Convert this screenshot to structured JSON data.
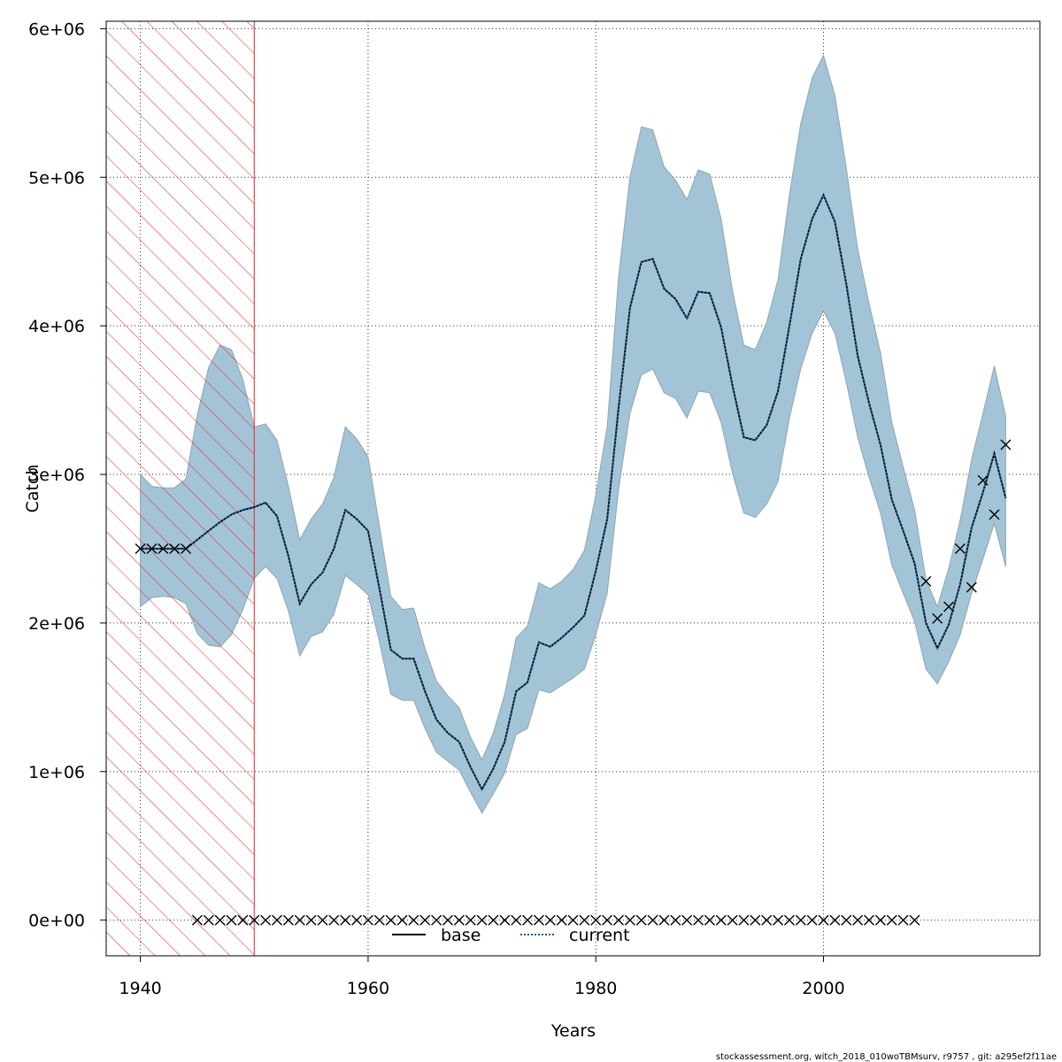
{
  "chart_data": {
    "type": "line",
    "xlabel": "Years",
    "ylabel": "Catch",
    "xlim": [
      1937,
      2019
    ],
    "ylim": [
      -240000,
      6050000
    ],
    "x_ticks": [
      1940,
      1960,
      1980,
      2000
    ],
    "x_tick_labels": [
      "1940",
      "1960",
      "1980",
      "2000"
    ],
    "y_ticks": [
      0,
      1000000,
      2000000,
      3000000,
      4000000,
      5000000,
      6000000
    ],
    "y_tick_labels": [
      "0e+00",
      "1e+06",
      "2e+06",
      "3e+06",
      "4e+06",
      "5e+06",
      "6e+06"
    ],
    "grid": "dotted",
    "shaded_period": {
      "from": 1937,
      "to": 1950,
      "color": "#e8232a"
    },
    "band_color": "#a3c4d6",
    "band_edge_color": "#8fa6b3",
    "series": [
      {
        "name": "current",
        "style": "dotted",
        "color": "#1a5a8a",
        "x": [
          1940,
          1941,
          1942,
          1943,
          1944,
          1945,
          1946,
          1947,
          1948,
          1949,
          1950,
          1951,
          1952,
          1953,
          1954,
          1955,
          1956,
          1957,
          1958,
          1959,
          1960,
          1961,
          1962,
          1963,
          1964,
          1965,
          1966,
          1967,
          1968,
          1969,
          1970,
          1971,
          1972,
          1973,
          1974,
          1975,
          1976,
          1977,
          1978,
          1979,
          1980,
          1981,
          1982,
          1983,
          1984,
          1985,
          1986,
          1987,
          1988,
          1989,
          1990,
          1991,
          1992,
          1993,
          1994,
          1995,
          1996,
          1997,
          1998,
          1999,
          2000,
          2001,
          2002,
          2003,
          2004,
          2005,
          2006,
          2007,
          2008,
          2009,
          2010,
          2011,
          2012,
          2013,
          2014,
          2015,
          2016
        ],
        "values": [
          2500000,
          2500000,
          2500000,
          2500000,
          2500000,
          2560000,
          2620000,
          2680000,
          2730000,
          2760000,
          2780000,
          2810000,
          2720000,
          2450000,
          2130000,
          2260000,
          2340000,
          2500000,
          2760000,
          2700000,
          2620000,
          2230000,
          1820000,
          1760000,
          1760000,
          1540000,
          1350000,
          1260000,
          1200000,
          1030000,
          880000,
          1020000,
          1200000,
          1540000,
          1600000,
          1870000,
          1840000,
          1900000,
          1970000,
          2050000,
          2350000,
          2700000,
          3450000,
          4120000,
          4430000,
          4450000,
          4250000,
          4180000,
          4050000,
          4230000,
          4220000,
          3990000,
          3600000,
          3250000,
          3230000,
          3330000,
          3560000,
          4000000,
          4450000,
          4720000,
          4880000,
          4700000,
          4280000,
          3800000,
          3480000,
          3200000,
          2830000,
          2620000,
          2400000,
          2000000,
          1830000,
          1990000,
          2260000,
          2640000,
          2880000,
          3140000,
          2840000
        ]
      },
      {
        "name": "base",
        "style": "solid",
        "color": "#000000",
        "x": [],
        "values": []
      }
    ],
    "band": {
      "x": [
        1940,
        1941,
        1942,
        1943,
        1944,
        1945,
        1946,
        1947,
        1948,
        1949,
        1950,
        1951,
        1952,
        1953,
        1954,
        1955,
        1956,
        1957,
        1958,
        1959,
        1960,
        1961,
        1962,
        1963,
        1964,
        1965,
        1966,
        1967,
        1968,
        1969,
        1970,
        1971,
        1972,
        1973,
        1974,
        1975,
        1976,
        1977,
        1978,
        1979,
        1980,
        1981,
        1982,
        1983,
        1984,
        1985,
        1986,
        1987,
        1988,
        1989,
        1990,
        1991,
        1992,
        1993,
        1994,
        1995,
        1996,
        1997,
        1998,
        1999,
        2000,
        2001,
        2002,
        2003,
        2004,
        2005,
        2006,
        2007,
        2008,
        2009,
        2010,
        2011,
        2012,
        2013,
        2014,
        2015,
        2016
      ],
      "upper": [
        3000000,
        2920000,
        2910000,
        2910000,
        2970000,
        3400000,
        3720000,
        3870000,
        3840000,
        3640000,
        3320000,
        3340000,
        3230000,
        2920000,
        2560000,
        2700000,
        2800000,
        2980000,
        3320000,
        3240000,
        3120000,
        2650000,
        2180000,
        2090000,
        2100000,
        1830000,
        1610000,
        1510000,
        1430000,
        1230000,
        1080000,
        1260000,
        1520000,
        1900000,
        1980000,
        2270000,
        2230000,
        2280000,
        2360000,
        2490000,
        2860000,
        3320000,
        4330000,
        5000000,
        5340000,
        5320000,
        5070000,
        4980000,
        4850000,
        5050000,
        5020000,
        4720000,
        4240000,
        3870000,
        3840000,
        4020000,
        4310000,
        4880000,
        5360000,
        5670000,
        5820000,
        5550000,
        5060000,
        4520000,
        4150000,
        3820000,
        3350000,
        3050000,
        2760000,
        2290000,
        2110000,
        2370000,
        2690000,
        3100000,
        3410000,
        3730000,
        3390000
      ],
      "lower": [
        2110000,
        2170000,
        2180000,
        2170000,
        2130000,
        1930000,
        1850000,
        1840000,
        1920000,
        2090000,
        2300000,
        2380000,
        2300000,
        2080000,
        1780000,
        1910000,
        1940000,
        2060000,
        2320000,
        2260000,
        2190000,
        1870000,
        1520000,
        1480000,
        1480000,
        1290000,
        1130000,
        1070000,
        1010000,
        860000,
        720000,
        850000,
        990000,
        1250000,
        1290000,
        1550000,
        1530000,
        1580000,
        1630000,
        1690000,
        1920000,
        2200000,
        2900000,
        3410000,
        3670000,
        3710000,
        3550000,
        3510000,
        3380000,
        3560000,
        3550000,
        3350000,
        3010000,
        2740000,
        2710000,
        2800000,
        2950000,
        3380000,
        3710000,
        3950000,
        4100000,
        3950000,
        3620000,
        3250000,
        2980000,
        2740000,
        2390000,
        2200000,
        2010000,
        1690000,
        1590000,
        1740000,
        1920000,
        2200000,
        2430000,
        2670000,
        2380000
      ]
    },
    "points": {
      "marker": "x",
      "x": [
        1940,
        1941,
        1942,
        1943,
        1944,
        1945,
        1946,
        1947,
        1948,
        1949,
        1950,
        1951,
        1952,
        1953,
        1954,
        1955,
        1956,
        1957,
        1958,
        1959,
        1960,
        1961,
        1962,
        1963,
        1964,
        1965,
        1966,
        1967,
        1968,
        1969,
        1970,
        1971,
        1972,
        1973,
        1974,
        1975,
        1976,
        1977,
        1978,
        1979,
        1980,
        1981,
        1982,
        1983,
        1984,
        1985,
        1986,
        1987,
        1988,
        1989,
        1990,
        1991,
        1992,
        1993,
        1994,
        1995,
        1996,
        1997,
        1998,
        1999,
        2000,
        2001,
        2002,
        2003,
        2004,
        2005,
        2006,
        2007,
        2008,
        2009,
        2010,
        2011,
        2012,
        2013,
        2014,
        2015,
        2016
      ],
      "values": [
        2500000,
        2500000,
        2500000,
        2500000,
        2500000,
        0,
        0,
        0,
        0,
        0,
        0,
        0,
        0,
        0,
        0,
        0,
        0,
        0,
        0,
        0,
        0,
        0,
        0,
        0,
        0,
        0,
        0,
        0,
        0,
        0,
        0,
        0,
        0,
        0,
        0,
        0,
        0,
        0,
        0,
        0,
        0,
        0,
        0,
        0,
        0,
        0,
        0,
        0,
        0,
        0,
        0,
        0,
        0,
        0,
        0,
        0,
        0,
        0,
        0,
        0,
        0,
        0,
        0,
        0,
        0,
        0,
        0,
        0,
        0,
        2280000,
        2030000,
        2110000,
        2500000,
        2240000,
        2960000,
        2730000,
        3200000
      ]
    },
    "legend": {
      "placement": "bottom-center",
      "entries": [
        {
          "label": "base",
          "style": "solid",
          "color": "#000000"
        },
        {
          "label": "current",
          "style": "dotted",
          "color": "#1a5a8a"
        }
      ]
    }
  },
  "footer_text": "stockassessment.org, witch_2018_010woTBMsurv, r9757 , git: a295ef2f11ae"
}
